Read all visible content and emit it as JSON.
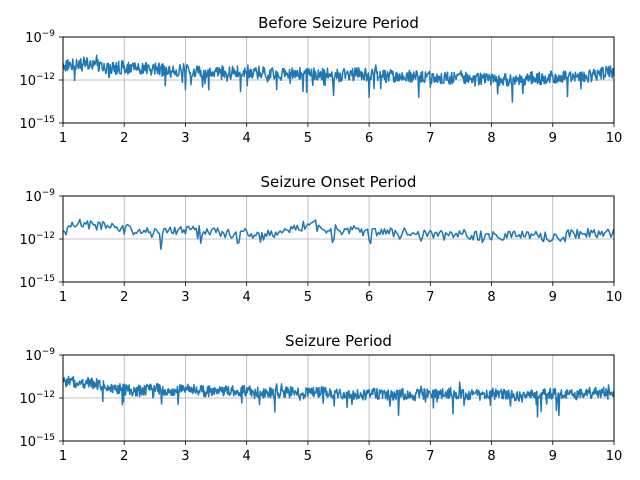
{
  "chart_data": [
    {
      "type": "line",
      "title": "Before Seizure Period",
      "xlim": [
        1,
        10
      ],
      "ylim_log10": [
        -15,
        -9
      ],
      "y_scale": "log",
      "grid": true,
      "x_ticks": [
        1,
        2,
        3,
        4,
        5,
        6,
        7,
        8,
        9,
        10
      ],
      "y_ticks": [
        {
          "base": "10",
          "exp": "−15",
          "value": -15
        },
        {
          "base": "10",
          "exp": "−12",
          "value": -12
        },
        {
          "base": "10",
          "exp": "−9",
          "value": -9
        }
      ],
      "color": "#1f77b4",
      "series": [
        {
          "x": [
            1.0,
            1.25,
            1.5,
            1.75,
            2.0,
            2.25,
            2.5,
            2.75,
            3.0,
            3.25,
            3.5,
            3.75,
            4.0,
            4.25,
            4.5,
            4.75,
            5.0,
            5.25,
            5.5,
            5.75,
            6.0,
            6.25,
            6.5,
            6.75,
            7.0,
            7.25,
            7.5,
            7.75,
            8.0,
            8.25,
            8.5,
            8.75,
            9.0,
            9.25,
            9.5,
            9.75,
            10.0
          ],
          "y_log10_approx": [
            -11.0,
            -10.8,
            -10.9,
            -11.2,
            -11.1,
            -11.3,
            -11.2,
            -11.4,
            -11.3,
            -11.5,
            -11.4,
            -11.5,
            -11.4,
            -11.5,
            -11.6,
            -11.5,
            -11.5,
            -11.6,
            -11.7,
            -11.6,
            -11.6,
            -11.7,
            -11.8,
            -11.7,
            -11.8,
            -11.9,
            -11.8,
            -11.9,
            -11.9,
            -12.0,
            -11.9,
            -11.9,
            -11.8,
            -11.7,
            -11.8,
            -11.6,
            -11.4
          ],
          "dense_samples": 900,
          "noise_amp": 0.45,
          "dip_depth": 1.4
        }
      ]
    },
    {
      "type": "line",
      "title": "Seizure Onset Period",
      "xlim": [
        1,
        10
      ],
      "ylim_log10": [
        -15,
        -9
      ],
      "y_scale": "log",
      "grid": true,
      "x_ticks": [
        1,
        2,
        3,
        4,
        5,
        6,
        7,
        8,
        9,
        10
      ],
      "y_ticks": [
        {
          "base": "10",
          "exp": "−15",
          "value": -15
        },
        {
          "base": "10",
          "exp": "−12",
          "value": -12
        },
        {
          "base": "10",
          "exp": "−9",
          "value": -9
        }
      ],
      "color": "#1f77b4",
      "series": [
        {
          "x": [
            1.0,
            1.25,
            1.5,
            1.75,
            2.0,
            2.25,
            2.5,
            2.75,
            3.0,
            3.25,
            3.5,
            3.75,
            4.0,
            4.25,
            4.5,
            4.75,
            5.0,
            5.25,
            5.5,
            5.75,
            6.0,
            6.25,
            6.5,
            6.75,
            7.0,
            7.25,
            7.5,
            7.75,
            8.0,
            8.25,
            8.5,
            8.75,
            9.0,
            9.25,
            9.5,
            9.75,
            10.0
          ],
          "y_log10_approx": [
            -11.5,
            -10.9,
            -11.0,
            -11.2,
            -11.3,
            -11.5,
            -11.6,
            -11.4,
            -11.3,
            -11.4,
            -11.5,
            -11.6,
            -11.6,
            -11.9,
            -11.5,
            -11.4,
            -11.0,
            -11.2,
            -11.4,
            -11.3,
            -11.5,
            -11.4,
            -11.6,
            -11.5,
            -11.6,
            -11.7,
            -11.6,
            -11.8,
            -11.7,
            -11.8,
            -11.7,
            -11.8,
            -11.9,
            -11.7,
            -11.6,
            -11.7,
            -11.6
          ],
          "dense_samples": 360,
          "noise_amp": 0.35,
          "dip_depth": 0.9
        }
      ]
    },
    {
      "type": "line",
      "title": "Seizure Period",
      "xlim": [
        1,
        10
      ],
      "ylim_log10": [
        -15,
        -9
      ],
      "y_scale": "log",
      "grid": true,
      "x_ticks": [
        1,
        2,
        3,
        4,
        5,
        6,
        7,
        8,
        9,
        10
      ],
      "y_ticks": [
        {
          "base": "10",
          "exp": "−15",
          "value": -15
        },
        {
          "base": "10",
          "exp": "−12",
          "value": -12
        },
        {
          "base": "10",
          "exp": "−9",
          "value": -9
        }
      ],
      "color": "#1f77b4",
      "series": [
        {
          "x": [
            1.0,
            1.25,
            1.5,
            1.75,
            2.0,
            2.25,
            2.5,
            2.75,
            3.0,
            3.25,
            3.5,
            3.75,
            4.0,
            4.25,
            4.5,
            4.75,
            5.0,
            5.25,
            5.5,
            5.75,
            6.0,
            6.25,
            6.5,
            6.75,
            7.0,
            7.25,
            7.5,
            7.75,
            8.0,
            8.25,
            8.5,
            8.75,
            9.0,
            9.25,
            9.5,
            9.75,
            10.0
          ],
          "y_log10_approx": [
            -10.9,
            -10.9,
            -11.0,
            -11.2,
            -11.4,
            -11.5,
            -11.3,
            -11.5,
            -11.4,
            -11.5,
            -11.6,
            -11.5,
            -11.5,
            -11.6,
            -11.6,
            -11.6,
            -11.7,
            -11.6,
            -11.7,
            -11.8,
            -11.7,
            -11.8,
            -11.7,
            -11.8,
            -11.7,
            -11.6,
            -11.7,
            -11.8,
            -11.7,
            -11.8,
            -11.9,
            -11.8,
            -11.7,
            -11.8,
            -11.7,
            -11.6,
            -11.4
          ],
          "dense_samples": 900,
          "noise_amp": 0.4,
          "dip_depth": 1.3
        }
      ]
    }
  ]
}
